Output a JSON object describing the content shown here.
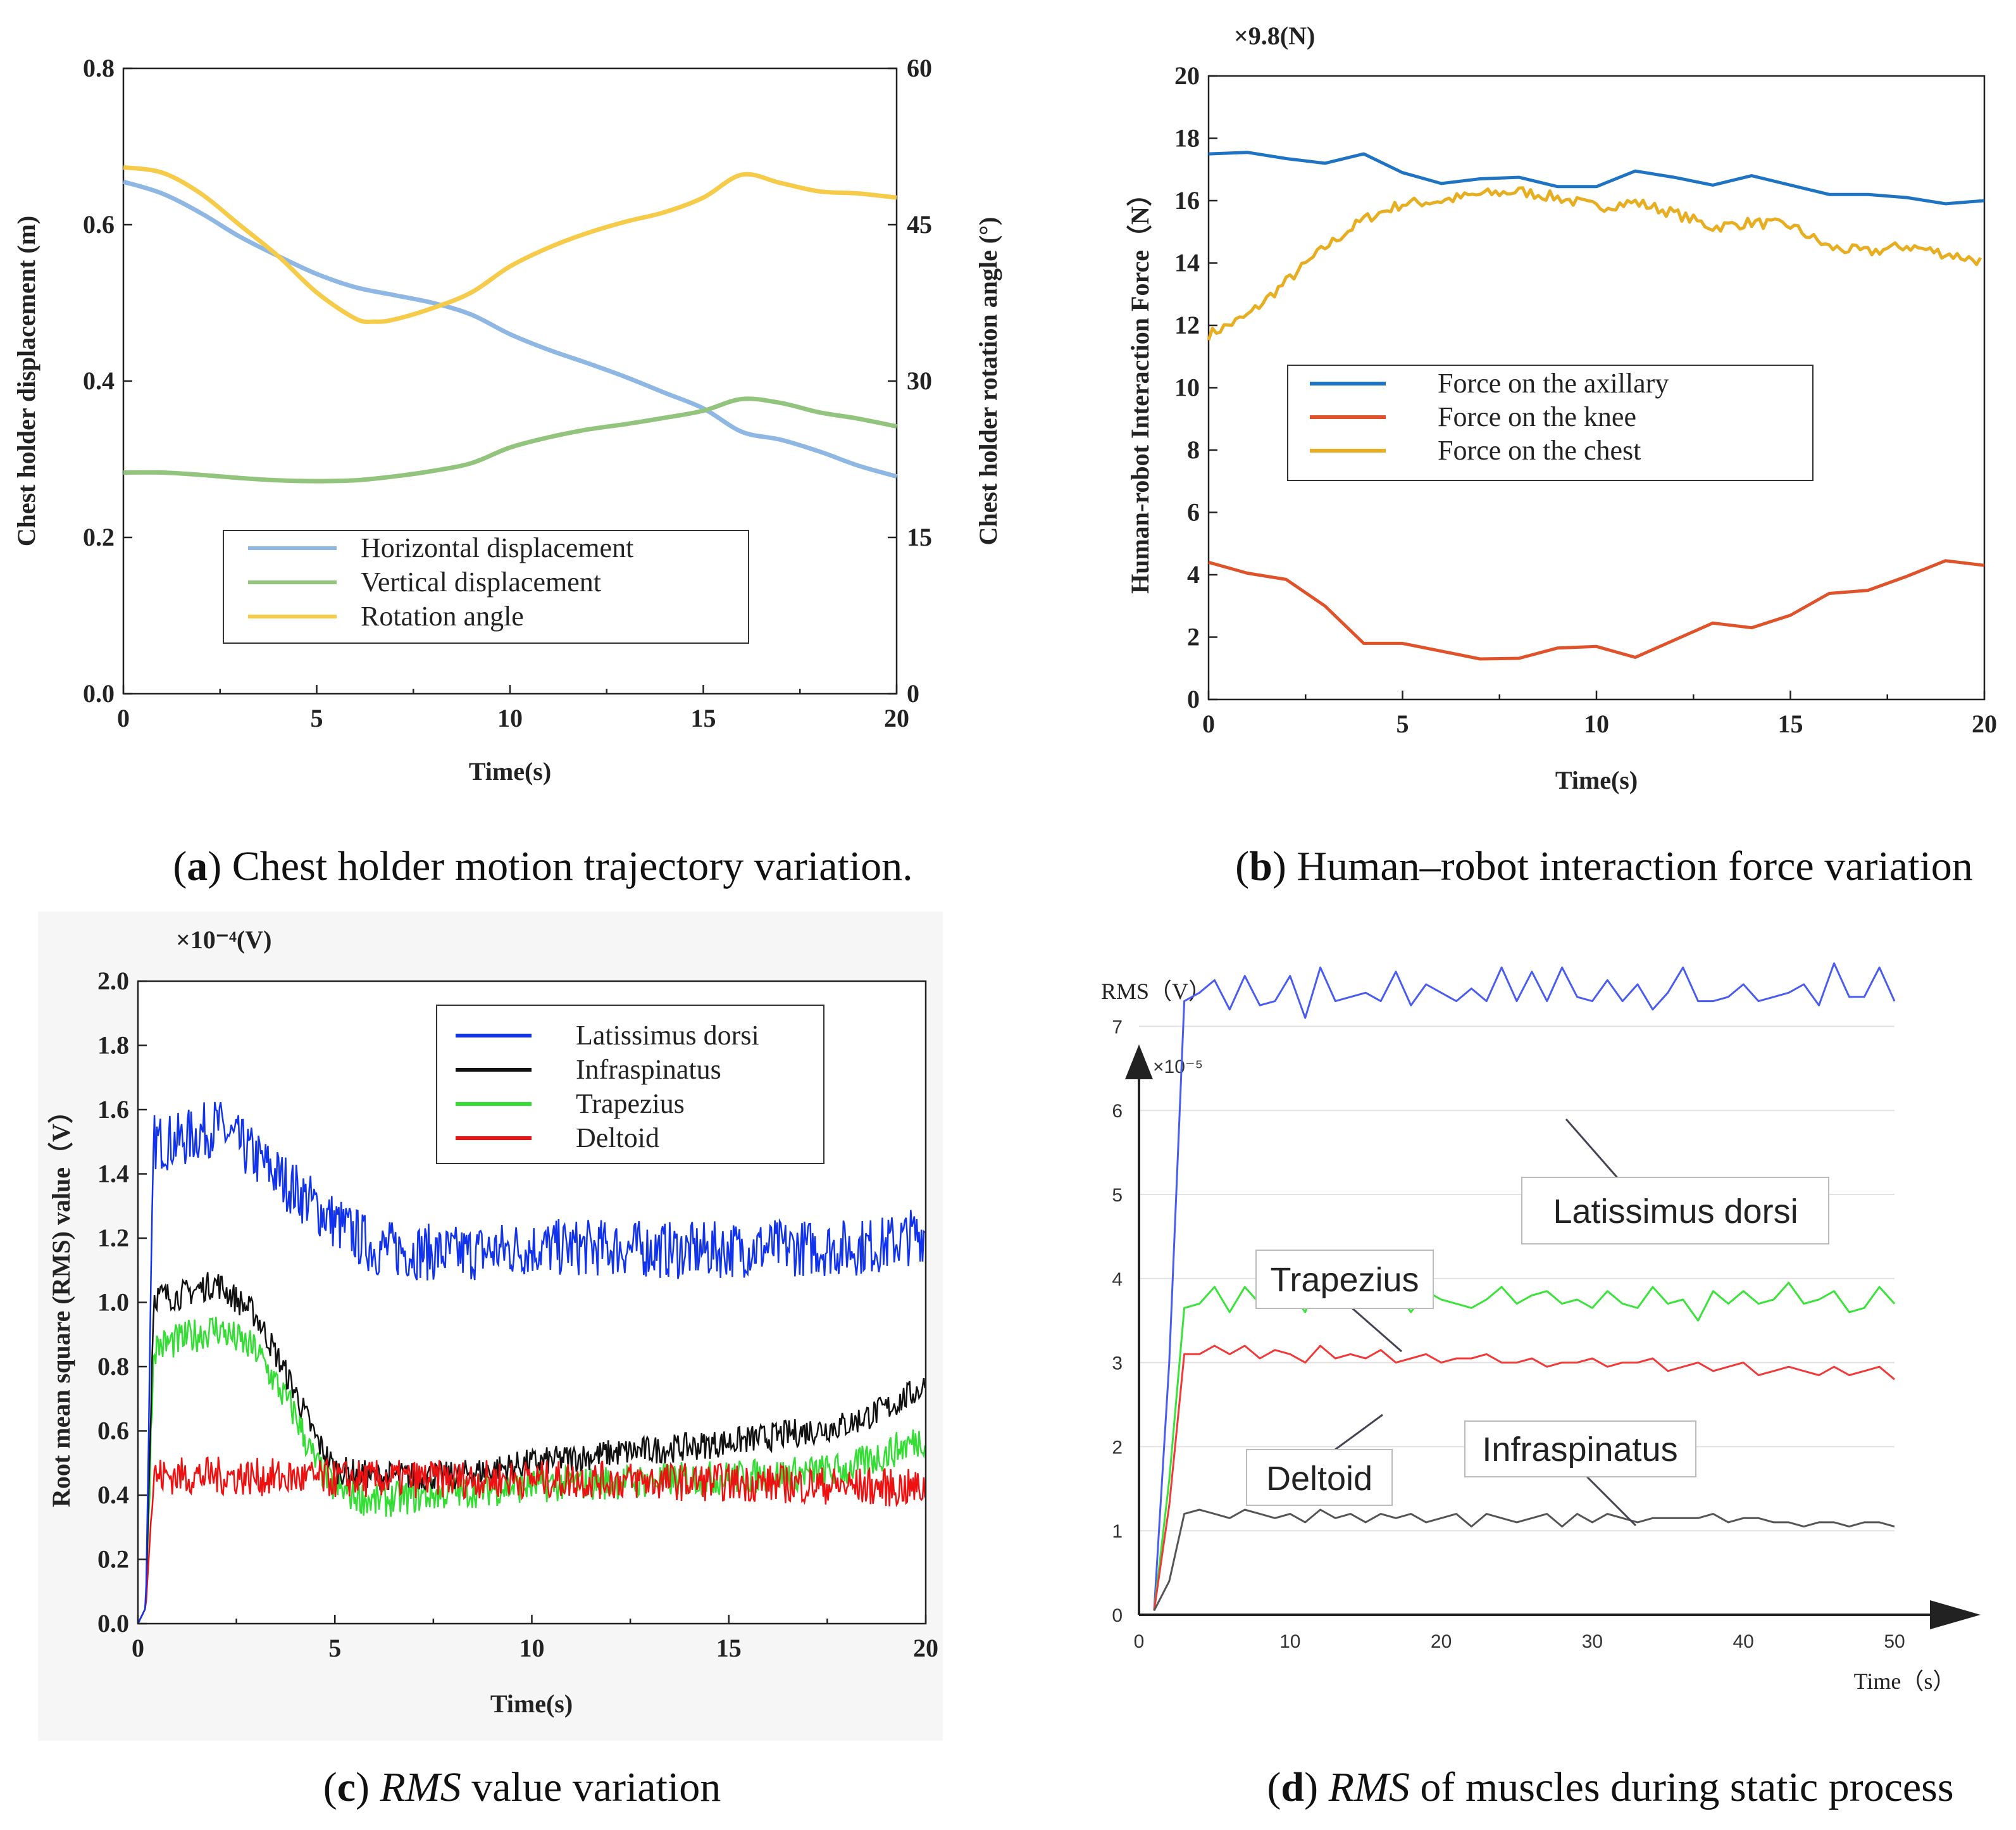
{
  "captions": {
    "a": {
      "letter": "a",
      "text": " Chest holder motion trajectory variation."
    },
    "b": {
      "letter": "b",
      "text": " Human–robot interaction force variation"
    },
    "c": {
      "letter": "c",
      "italic": "RMS",
      "text": " value variation"
    },
    "d": {
      "letter": "d",
      "italic": "RMS",
      "text": " of muscles during static process"
    }
  },
  "colors": {
    "blue_a": "#8fb7e3",
    "green_a": "#93c47d",
    "yellow_a": "#f6cb4a",
    "blue_b": "#1f73c3",
    "orange_b": "#e0522a",
    "gold_b": "#e7ae22",
    "blue_c": "#1133ee",
    "black_c": "#111111",
    "green_c": "#33dd33",
    "red_c": "#ee1111",
    "blue_d": "#4a5cf0",
    "green_d": "#39e339",
    "red_d": "#f03a3a",
    "gray_d": "#555555"
  },
  "chart_data": [
    {
      "id": "a",
      "type": "line",
      "xlabel": "Time(s)",
      "ylabel": "Chest holder displacement (m)",
      "y2label": "Chest holder rotation angle (°)",
      "xlim": [
        0,
        20
      ],
      "ylim": [
        0.0,
        0.8
      ],
      "y2lim": [
        0,
        60
      ],
      "xticks": [
        "0",
        "5",
        "10",
        "15",
        "20"
      ],
      "yticks": [
        "0.0",
        "0.2",
        "0.4",
        "0.6",
        "0.8"
      ],
      "y2ticks": [
        "0",
        "15",
        "30",
        "45",
        "60"
      ],
      "legend": [
        "Horizontal displacement",
        "Vertical displacement",
        "Rotation angle"
      ],
      "series": [
        {
          "name": "Horizontal displacement",
          "axis": "left",
          "x": [
            0,
            1,
            2,
            3,
            4,
            5,
            6,
            7,
            8,
            9,
            10,
            11,
            12,
            13,
            14,
            15,
            16,
            17,
            18,
            19,
            20
          ],
          "values": [
            0.655,
            0.64,
            0.615,
            0.585,
            0.56,
            0.537,
            0.52,
            0.51,
            0.5,
            0.485,
            0.46,
            0.44,
            0.423,
            0.405,
            0.385,
            0.365,
            0.335,
            0.325,
            0.31,
            0.292,
            0.278
          ]
        },
        {
          "name": "Vertical displacement",
          "axis": "left",
          "x": [
            0,
            1,
            2,
            3,
            4,
            5,
            6,
            7,
            8,
            9,
            10,
            11,
            12,
            13,
            14,
            15,
            16,
            17,
            18,
            19,
            20
          ],
          "values": [
            0.283,
            0.283,
            0.28,
            0.276,
            0.273,
            0.272,
            0.273,
            0.278,
            0.285,
            0.295,
            0.315,
            0.328,
            0.338,
            0.345,
            0.353,
            0.362,
            0.377,
            0.372,
            0.36,
            0.352,
            0.342
          ]
        },
        {
          "name": "Rotation angle",
          "axis": "right",
          "x": [
            0,
            1,
            2,
            3,
            4,
            5,
            6,
            6.5,
            7,
            8,
            9,
            10,
            11,
            12,
            13,
            14,
            15,
            16,
            17,
            18,
            19,
            20
          ],
          "values": [
            50.5,
            50,
            48,
            45,
            42,
            38.5,
            36,
            35.7,
            35.9,
            37,
            38.5,
            41,
            42.8,
            44.2,
            45.3,
            46.2,
            47.6,
            49.8,
            49,
            48.2,
            48,
            47.6
          ]
        }
      ]
    },
    {
      "id": "b",
      "type": "line",
      "unit_note": "×9.8(N)",
      "xlabel": "Time(s)",
      "ylabel": "Human-robot Interaction Force（N）",
      "xlim": [
        0,
        20
      ],
      "ylim": [
        0,
        20
      ],
      "xticks": [
        "0",
        "5",
        "10",
        "15",
        "20"
      ],
      "yticks": [
        "0",
        "2",
        "4",
        "6",
        "8",
        "10",
        "12",
        "14",
        "16",
        "18",
        "20"
      ],
      "legend": [
        "Force on the axillary",
        "Force on the knee",
        "Force on the chest"
      ],
      "series": [
        {
          "name": "Force on the axillary",
          "x": [
            0,
            1,
            2,
            3,
            4,
            5,
            6,
            7,
            8,
            9,
            10,
            11,
            12,
            13,
            14,
            15,
            16,
            17,
            18,
            19,
            20
          ],
          "values": [
            17.5,
            17.55,
            17.35,
            17.2,
            17.5,
            16.9,
            16.55,
            16.7,
            16.75,
            16.45,
            16.45,
            16.95,
            16.75,
            16.5,
            16.8,
            16.5,
            16.2,
            16.2,
            16.1,
            15.9,
            16.0
          ]
        },
        {
          "name": "Force on the knee",
          "x": [
            0,
            1,
            2,
            3,
            4,
            5,
            6,
            7,
            8,
            9,
            10,
            11,
            12,
            13,
            14,
            15,
            16,
            17,
            18,
            19,
            20
          ],
          "values": [
            4.4,
            4.05,
            3.85,
            3.0,
            1.8,
            1.8,
            1.55,
            1.3,
            1.32,
            1.65,
            1.7,
            1.35,
            1.9,
            2.45,
            2.3,
            2.7,
            3.4,
            3.5,
            3.95,
            4.45,
            4.3
          ]
        },
        {
          "name": "Force on the chest",
          "x": [
            0,
            1,
            2,
            3,
            4,
            5,
            6,
            7,
            8,
            9,
            10,
            11,
            12,
            13,
            14,
            15,
            16,
            17,
            18,
            19,
            20
          ],
          "values": [
            11.7,
            12.3,
            13.4,
            14.5,
            15.4,
            15.9,
            16.0,
            16.2,
            16.3,
            16.1,
            15.8,
            15.95,
            15.6,
            15.15,
            15.3,
            15.2,
            14.5,
            14.35,
            14.55,
            14.3,
            14.05
          ]
        }
      ]
    },
    {
      "id": "c",
      "type": "line",
      "unit_note": "×10⁻⁴(V)",
      "xlabel": "Time(s)",
      "ylabel": "Root mean square (RMS) value（V）",
      "xlim": [
        0,
        20
      ],
      "ylim": [
        0.0,
        2.0
      ],
      "xticks": [
        "0",
        "5",
        "10",
        "15",
        "20"
      ],
      "yticks": [
        "0.0",
        "0.2",
        "0.4",
        "0.6",
        "0.8",
        "1.0",
        "1.2",
        "1.4",
        "1.6",
        "1.8",
        "2.0"
      ],
      "legend": [
        "Latissimus dorsi",
        "Infraspinatus",
        "Trapezius",
        "Deltoid"
      ],
      "series": [
        {
          "name": "Latissimus dorsi",
          "noise": 0.09,
          "x": [
            0,
            0.2,
            0.4,
            1,
            2,
            3,
            4,
            5,
            6,
            8,
            10,
            12,
            14,
            16,
            18,
            19,
            20
          ],
          "values": [
            0.0,
            0.05,
            1.5,
            1.5,
            1.55,
            1.45,
            1.35,
            1.25,
            1.17,
            1.15,
            1.17,
            1.17,
            1.16,
            1.17,
            1.17,
            1.18,
            1.22
          ]
        },
        {
          "name": "Infraspinatus",
          "noise": 0.045,
          "x": [
            0,
            0.2,
            0.4,
            1,
            2,
            3,
            4,
            4.5,
            5,
            6,
            8,
            10,
            12,
            14,
            16,
            18,
            19,
            20
          ],
          "values": [
            0.0,
            0.05,
            1.02,
            1.02,
            1.06,
            0.96,
            0.72,
            0.58,
            0.48,
            0.46,
            0.46,
            0.5,
            0.53,
            0.55,
            0.58,
            0.62,
            0.67,
            0.74
          ]
        },
        {
          "name": "Trapezius",
          "noise": 0.055,
          "x": [
            0,
            0.2,
            0.4,
            1,
            2,
            3,
            4,
            4.5,
            5,
            6,
            8,
            10,
            12,
            14,
            16,
            18,
            19,
            20
          ],
          "values": [
            0.0,
            0.05,
            0.86,
            0.88,
            0.92,
            0.85,
            0.65,
            0.5,
            0.42,
            0.38,
            0.41,
            0.43,
            0.44,
            0.45,
            0.46,
            0.48,
            0.53,
            0.58
          ]
        },
        {
          "name": "Deltoid",
          "noise": 0.06,
          "x": [
            0,
            0.2,
            0.4,
            2,
            5,
            10,
            15,
            20
          ],
          "values": [
            0.0,
            0.05,
            0.46,
            0.46,
            0.45,
            0.45,
            0.44,
            0.42
          ]
        }
      ]
    },
    {
      "id": "d",
      "type": "line",
      "ylabel": "RMS（V）",
      "xlabel": "Time（s）",
      "scale_note": "×10⁻⁵",
      "xlim": [
        0,
        50
      ],
      "ylim": [
        0,
        7.5
      ],
      "xticks": [
        "0",
        "10",
        "20",
        "30",
        "40",
        "50"
      ],
      "yticks": [
        "0",
        "1",
        "2",
        "3",
        "4",
        "5",
        "6",
        "7"
      ],
      "annotations": [
        "Latissimus dorsi",
        "Trapezius",
        "Deltoid",
        "Infraspinatus"
      ],
      "series": [
        {
          "name": "Latissimus dorsi",
          "x": [
            1,
            2,
            3,
            4,
            5,
            6,
            7,
            8,
            9,
            10,
            11,
            12,
            13,
            14,
            15,
            16,
            17,
            18,
            19,
            20,
            21,
            22,
            23,
            24,
            25,
            26,
            27,
            28,
            29,
            30,
            31,
            32,
            33,
            34,
            35,
            36,
            37,
            38,
            39,
            40,
            41,
            42,
            43,
            44,
            45,
            46,
            47,
            48,
            49,
            50
          ],
          "values": [
            0.05,
            3.0,
            7.3,
            7.4,
            7.55,
            7.2,
            7.6,
            7.25,
            7.3,
            7.6,
            7.1,
            7.7,
            7.3,
            7.35,
            7.4,
            7.3,
            7.65,
            7.25,
            7.5,
            7.4,
            7.3,
            7.45,
            7.3,
            7.7,
            7.3,
            7.65,
            7.3,
            7.7,
            7.35,
            7.3,
            7.55,
            7.3,
            7.5,
            7.2,
            7.4,
            7.7,
            7.3,
            7.3,
            7.35,
            7.5,
            7.3,
            7.35,
            7.4,
            7.5,
            7.25,
            7.75,
            7.35,
            7.35,
            7.7,
            7.3
          ]
        },
        {
          "name": "Trapezius",
          "x": [
            1,
            2,
            3,
            4,
            5,
            6,
            7,
            8,
            9,
            10,
            11,
            12,
            13,
            14,
            15,
            16,
            17,
            18,
            19,
            20,
            21,
            22,
            23,
            24,
            25,
            26,
            27,
            28,
            29,
            30,
            31,
            32,
            33,
            34,
            35,
            36,
            37,
            38,
            39,
            40,
            41,
            42,
            43,
            44,
            45,
            46,
            47,
            48,
            49,
            50
          ],
          "values": [
            0.05,
            1.6,
            3.65,
            3.7,
            3.9,
            3.6,
            3.9,
            3.7,
            3.75,
            3.85,
            3.6,
            4.05,
            3.65,
            3.7,
            3.65,
            3.7,
            3.85,
            3.6,
            3.85,
            3.75,
            3.7,
            3.65,
            3.75,
            3.9,
            3.7,
            3.8,
            3.85,
            3.7,
            3.75,
            3.65,
            3.85,
            3.7,
            3.65,
            3.9,
            3.7,
            3.75,
            3.5,
            3.85,
            3.7,
            3.85,
            3.7,
            3.75,
            3.95,
            3.7,
            3.75,
            3.85,
            3.6,
            3.65,
            3.9,
            3.7
          ]
        },
        {
          "name": "Deltoid",
          "x": [
            1,
            2,
            3,
            4,
            5,
            6,
            7,
            8,
            9,
            10,
            11,
            12,
            13,
            14,
            15,
            16,
            17,
            18,
            19,
            20,
            21,
            22,
            23,
            24,
            25,
            26,
            27,
            28,
            29,
            30,
            31,
            32,
            33,
            34,
            35,
            36,
            37,
            38,
            39,
            40,
            41,
            42,
            43,
            44,
            45,
            46,
            47,
            48,
            49,
            50
          ],
          "values": [
            0.05,
            1.3,
            3.1,
            3.1,
            3.2,
            3.1,
            3.2,
            3.05,
            3.15,
            3.1,
            3.0,
            3.2,
            3.05,
            3.1,
            3.05,
            3.15,
            3.0,
            3.05,
            3.1,
            3.0,
            3.05,
            3.05,
            3.1,
            3.0,
            3.0,
            3.05,
            2.95,
            3.0,
            3.0,
            3.05,
            2.95,
            3.0,
            3.0,
            3.05,
            2.9,
            2.95,
            3.0,
            2.9,
            2.95,
            3.0,
            2.85,
            2.9,
            2.95,
            2.9,
            2.85,
            2.95,
            2.85,
            2.9,
            2.95,
            2.8
          ]
        },
        {
          "name": "Infraspinatus",
          "x": [
            1,
            2,
            3,
            4,
            5,
            6,
            7,
            8,
            9,
            10,
            11,
            12,
            13,
            14,
            15,
            16,
            17,
            18,
            19,
            20,
            21,
            22,
            23,
            24,
            25,
            26,
            27,
            28,
            29,
            30,
            31,
            32,
            33,
            34,
            35,
            36,
            37,
            38,
            39,
            40,
            41,
            42,
            43,
            44,
            45,
            46,
            47,
            48,
            49,
            50
          ],
          "values": [
            0.05,
            0.4,
            1.2,
            1.25,
            1.2,
            1.15,
            1.25,
            1.2,
            1.15,
            1.2,
            1.1,
            1.25,
            1.15,
            1.2,
            1.1,
            1.2,
            1.15,
            1.2,
            1.1,
            1.15,
            1.2,
            1.05,
            1.2,
            1.15,
            1.1,
            1.15,
            1.2,
            1.05,
            1.2,
            1.1,
            1.2,
            1.15,
            1.1,
            1.15,
            1.15,
            1.15,
            1.15,
            1.2,
            1.1,
            1.15,
            1.15,
            1.1,
            1.1,
            1.05,
            1.1,
            1.1,
            1.05,
            1.1,
            1.1,
            1.05
          ]
        }
      ]
    }
  ]
}
